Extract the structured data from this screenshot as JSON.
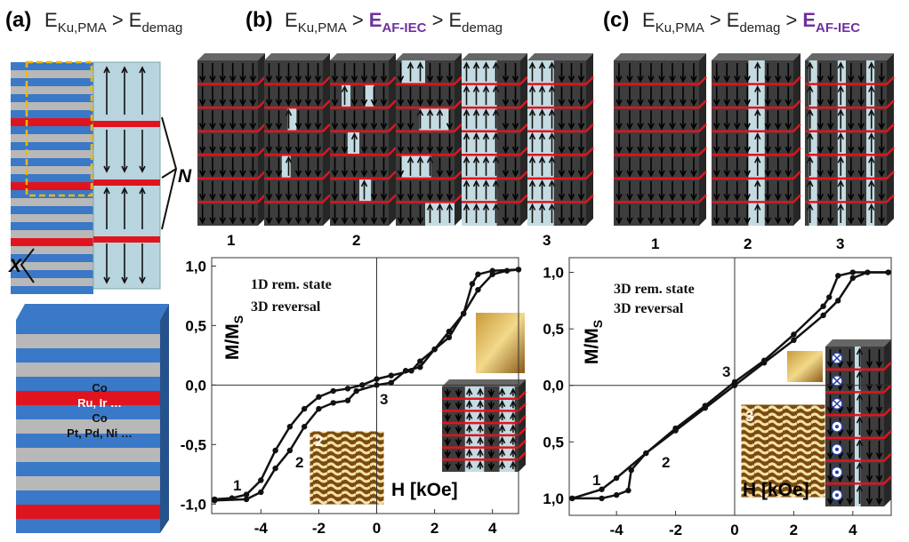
{
  "figure": {
    "headers": [
      {
        "panel": "(a)",
        "parts": [
          {
            "main": "E",
            "sub": "Ku,PMA"
          },
          {
            "main": ">"
          },
          {
            "main": "E",
            "sub": "demag"
          }
        ]
      },
      {
        "panel": "(b)",
        "parts": [
          {
            "main": "E",
            "sub": "Ku,PMA"
          },
          {
            "main": ">"
          },
          {
            "main": "E",
            "sub": "AF-IEC",
            "color": "#7030a0"
          },
          {
            "main": ">"
          },
          {
            "main": "E",
            "sub": "demag"
          }
        ]
      },
      {
        "panel": "(c)",
        "parts": [
          {
            "main": "E",
            "sub": "Ku,PMA"
          },
          {
            "main": ">"
          },
          {
            "main": "E",
            "sub": "demag"
          },
          {
            "main": ">"
          },
          {
            "main": "E",
            "sub": "AF-IEC",
            "color": "#7030a0"
          }
        ]
      }
    ],
    "stack_labels": [
      "N",
      "X"
    ],
    "layer_labels": [
      "Co",
      "Ru, Ir …",
      "Co",
      "Pt, Pd, Ni …"
    ],
    "state_labels_b": [
      "1",
      "2",
      "3"
    ],
    "state_labels_c": [
      "1",
      "2",
      "3"
    ]
  },
  "chart_data": [
    {
      "type": "line",
      "ylabel": [
        "M/M",
        "S"
      ],
      "xlabel": "H [kOe]",
      "annotations": [
        "1D rem. state",
        "3D reversal",
        "1",
        "2",
        "3",
        "2"
      ],
      "xlim": [
        -5.7,
        4.9
      ],
      "ylim": [
        -1.08,
        1.07
      ],
      "xticks": [
        -4,
        -2,
        0,
        2,
        4
      ],
      "yticks": [
        {
          "value": 1,
          "label": "1,0"
        },
        {
          "value": 0.5,
          "label": "0,5"
        },
        {
          "value": 0,
          "label": "0,0"
        },
        {
          "value": -0.5,
          "label": "-0,5"
        },
        {
          "value": -1,
          "label": "-1,0"
        }
      ],
      "series": [
        {
          "color": "#111111",
          "x": [
            4.9,
            4.0,
            3.5,
            3.3,
            3.0,
            2.5,
            2.0,
            1.5,
            1.2,
            0.5,
            0.0,
            -0.5,
            -1.0,
            -1.5,
            -2.0,
            -2.5,
            -3.0,
            -3.5,
            -4.0,
            -4.5,
            -5.0,
            -5.6
          ],
          "values": [
            0.97,
            0.96,
            0.93,
            0.85,
            0.6,
            0.4,
            0.3,
            0.2,
            0.12,
            0.08,
            0.05,
            0.0,
            -0.03,
            -0.05,
            -0.1,
            -0.2,
            -0.35,
            -0.55,
            -0.8,
            -0.92,
            -0.95,
            -0.96
          ]
        },
        {
          "color": "#111111",
          "x": [
            -5.6,
            -4.5,
            -4.0,
            -3.5,
            -3.0,
            -2.5,
            -2.0,
            -1.5,
            -1.0,
            -0.7,
            0.0,
            0.5,
            1.0,
            1.5,
            2.0,
            2.5,
            3.0,
            3.5,
            4.0,
            4.5,
            4.9
          ],
          "values": [
            -0.97,
            -0.96,
            -0.9,
            -0.7,
            -0.55,
            -0.35,
            -0.2,
            -0.15,
            -0.13,
            -0.05,
            0.0,
            0.02,
            0.12,
            0.15,
            0.3,
            0.45,
            0.6,
            0.8,
            0.93,
            0.96,
            0.97
          ]
        }
      ]
    },
    {
      "type": "line",
      "ylabel": [
        "M/M",
        "S"
      ],
      "xlabel": "H [kOe]",
      "annotations": [
        "3D rem. state",
        "3D reversal",
        "1",
        "2",
        "3",
        "3"
      ],
      "xlim": [
        -5.6,
        5.3
      ],
      "ylim": [
        -1.15,
        1.13
      ],
      "xticks": [
        -4,
        -2,
        0,
        2,
        4
      ],
      "yticks": [
        {
          "value": 1,
          "label": "1,0"
        },
        {
          "value": 0.5,
          "label": "0,5"
        },
        {
          "value": 0,
          "label": "0,0"
        },
        {
          "value": -0.5,
          "label": "0,5"
        },
        {
          "value": -1,
          "label": "1,0"
        }
      ],
      "series": [
        {
          "color": "#111111",
          "x": [
            -5.5,
            -4.5,
            -4.0,
            -3.6,
            -3.5,
            -3.0,
            -2.0,
            -1.0,
            0.0,
            1.0,
            2.0,
            3.0,
            3.5,
            4.0,
            4.5,
            5.2
          ],
          "values": [
            -1.0,
            -1.0,
            -0.97,
            -0.93,
            -0.75,
            -0.6,
            -0.4,
            -0.2,
            0.0,
            0.2,
            0.4,
            0.62,
            0.75,
            0.95,
            1.0,
            1.0
          ]
        },
        {
          "color": "#111111",
          "x": [
            5.2,
            4.0,
            3.5,
            3.2,
            3.0,
            2.0,
            1.0,
            0.0,
            -1.0,
            -2.0,
            -3.0,
            -4.0,
            -4.5,
            -5.5
          ],
          "values": [
            1.0,
            1.0,
            0.97,
            0.78,
            0.7,
            0.45,
            0.22,
            0.03,
            -0.18,
            -0.38,
            -0.6,
            -0.82,
            -0.92,
            -1.0
          ]
        }
      ]
    }
  ]
}
